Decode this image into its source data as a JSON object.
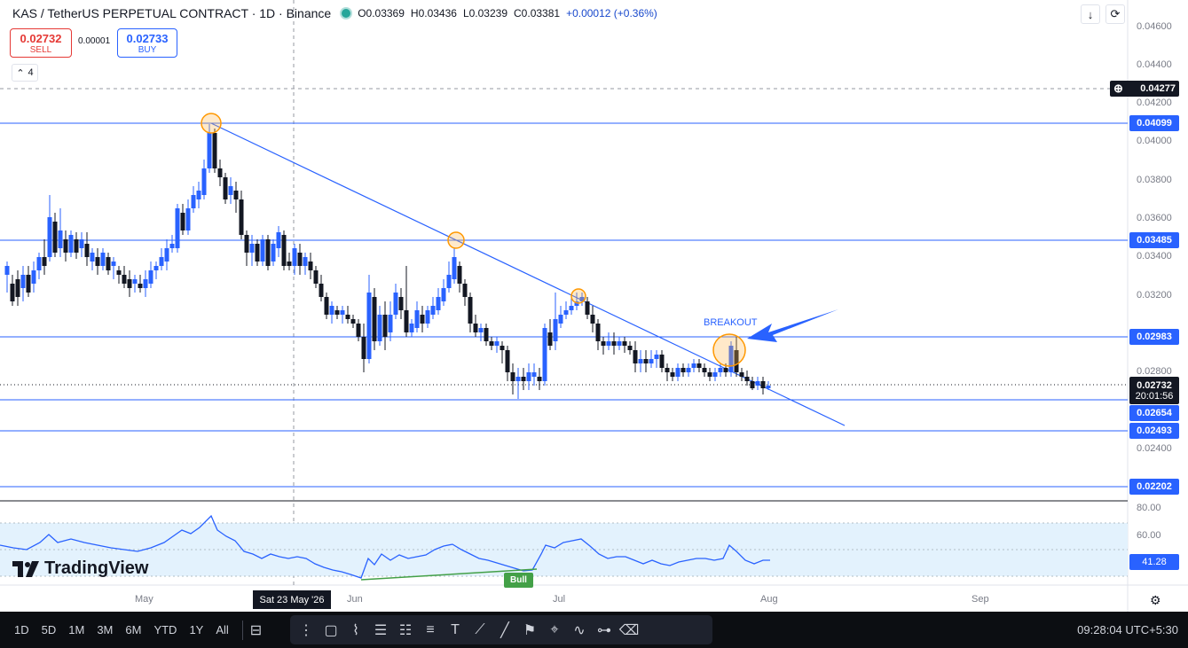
{
  "legend": {
    "symbol": "KAS / TetherUS PERPETUAL CONTRACT · 1D · Binance",
    "open": "O0.03369",
    "high": "H0.03436",
    "low": "L0.03239",
    "close": "C0.03381",
    "change": "+0.00012 (+0.36%)"
  },
  "trade": {
    "sell_price": "0.02732",
    "sell_label": "SELL",
    "spread": "0.00001",
    "buy_price": "0.02733",
    "buy_label": "BUY"
  },
  "indicators_count": "4",
  "price_axis": {
    "ticks": [
      "0.04600",
      "0.04400",
      "0.04200",
      "0.04000",
      "0.03800",
      "0.03600",
      "0.03400",
      "0.03200",
      "0.02800",
      "0.02400"
    ],
    "tags": {
      "crosshair": "0.04277",
      "level1": "0.04099",
      "level2": "0.03485",
      "level3": "0.02983",
      "current": "0.02732",
      "countdown": "20:01:56",
      "level4": "0.02654",
      "level5": "0.02493",
      "level6": "0.02202"
    }
  },
  "rsi_axis": {
    "ticks": [
      "80.00",
      "60.00"
    ],
    "current": "41.28"
  },
  "time_axis": {
    "months": [
      "May",
      "Jun",
      "Jul",
      "Aug",
      "Sep"
    ],
    "crosshair_date": "Sat 23 May '26"
  },
  "annotations": {
    "breakout": "BREAKOUT",
    "bull": "Bull"
  },
  "logo": "TradingView",
  "bottombar": {
    "timeframes": [
      "1D",
      "5D",
      "1M",
      "3M",
      "6M",
      "YTD",
      "1Y",
      "All"
    ],
    "clock": "09:28:04 UTC+5:30"
  },
  "colors": {
    "bull": "#2962ff",
    "bear": "#131722",
    "level": "#2962ff",
    "rsi": "#2962ff",
    "rsi_band": "#e3f2fd"
  },
  "icons": {
    "compare": "calendar-range-icon",
    "crosshair_tools": [
      "drag-dots-icon",
      "rectangle-icon",
      "path-icon",
      "fib-icon",
      "pattern-icon",
      "channel-icon",
      "text-icon",
      "brush-icon",
      "line-icon",
      "long-position-icon",
      "short-position-icon",
      "curve-icon",
      "ruler-icon",
      "eraser-icon"
    ]
  }
}
